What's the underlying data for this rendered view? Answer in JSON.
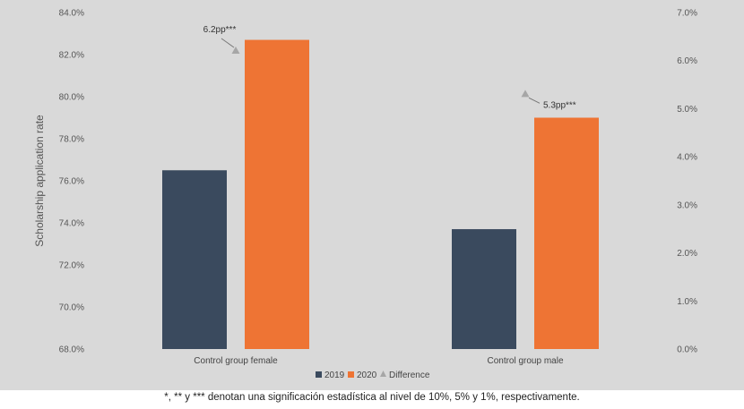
{
  "chart_data": {
    "type": "bar",
    "categories": [
      "Control group female",
      "Control group male"
    ],
    "series": [
      {
        "name": "2019",
        "values": [
          76.5,
          73.7
        ],
        "color": "#3a4a5e"
      },
      {
        "name": "2020",
        "values": [
          82.7,
          79.0
        ],
        "color": "#ee7434"
      }
    ],
    "difference": {
      "name": "Difference",
      "values": [
        6.2,
        5.3
      ],
      "labels": [
        "6.2pp***",
        "5.3pp***"
      ],
      "color": "#a6a6a6"
    },
    "ylabel": "Scholarship application rate",
    "ylim": [
      68,
      84
    ],
    "yticks": [
      "68.0%",
      "70.0%",
      "72.0%",
      "74.0%",
      "76.0%",
      "78.0%",
      "80.0%",
      "82.0%",
      "84.0%"
    ],
    "y2lim": [
      0,
      7
    ],
    "y2ticks": [
      "0.0%",
      "1.0%",
      "2.0%",
      "3.0%",
      "4.0%",
      "5.0%",
      "6.0%",
      "7.0%"
    ],
    "legend_position": "bottom",
    "grid": false
  },
  "footnote": "*, ** y *** denotan una significación estadística al nivel de 10%, 5% y 1%, respectivamente."
}
